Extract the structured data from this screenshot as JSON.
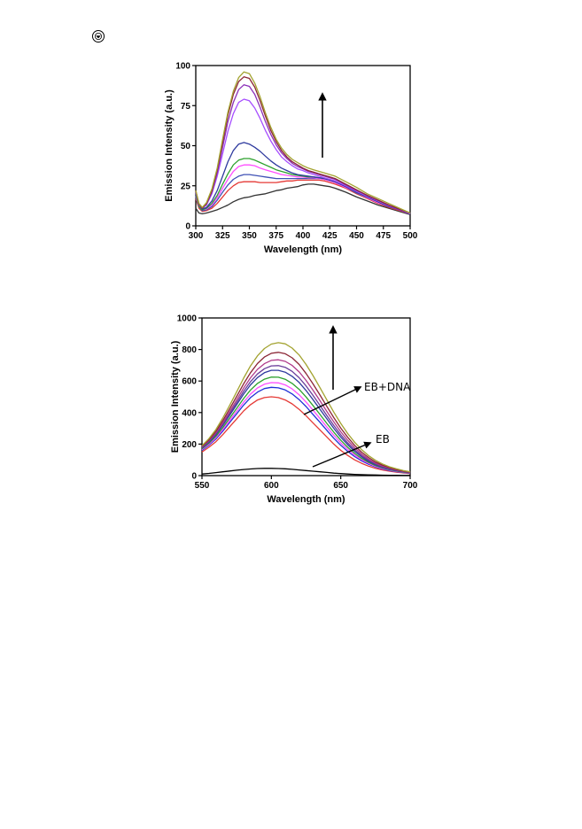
{
  "page": {
    "icon": "circled-cursor-icon"
  },
  "chart_data": [
    {
      "type": "line",
      "title": "",
      "xlabel": "Wavelength (nm)",
      "ylabel": "Emission Intensity (a.u.)",
      "xlim": [
        300,
        500
      ],
      "ylim": [
        0,
        100
      ],
      "xticks": [
        "300",
        "325",
        "350",
        "375",
        "400",
        "425",
        "450",
        "475",
        "500"
      ],
      "yticks": [
        "0",
        "25",
        "50",
        "75",
        "100"
      ],
      "grid": false,
      "legend": "none",
      "annotations": [
        {
          "type": "arrow",
          "direction": "up",
          "text": ""
        }
      ],
      "x": [
        300,
        303,
        306,
        310,
        315,
        320,
        325,
        330,
        335,
        340,
        345,
        350,
        355,
        360,
        365,
        370,
        375,
        380,
        385,
        390,
        395,
        400,
        405,
        410,
        415,
        420,
        425,
        430,
        440,
        450,
        460,
        470,
        480,
        490,
        500
      ],
      "series": [
        {
          "color": "#333333",
          "values": [
            11,
            8,
            7.5,
            8,
            9,
            10,
            11.5,
            13,
            15,
            16.5,
            17.5,
            18,
            19,
            19.5,
            20,
            21,
            22,
            22.5,
            23.5,
            24,
            24.5,
            25.5,
            26,
            26,
            25.5,
            25,
            24.5,
            23.5,
            21,
            18,
            15.5,
            13,
            11,
            9,
            7
          ]
        },
        {
          "color": "#e53935",
          "values": [
            17,
            11,
            9,
            9.5,
            11,
            14,
            18,
            22,
            25,
            27,
            27.5,
            27.5,
            27.5,
            27,
            27,
            27,
            27,
            27.5,
            28,
            28,
            28.5,
            28.5,
            28.5,
            28.5,
            28.5,
            28,
            27,
            26,
            23.5,
            20,
            17,
            14,
            11.5,
            9.5,
            7.5
          ]
        },
        {
          "color": "#3f51b5",
          "values": [
            18,
            12,
            9.5,
            10,
            12,
            16,
            21,
            25.5,
            29,
            31,
            32,
            32,
            31.5,
            31,
            30.5,
            30,
            29.5,
            29.5,
            29.5,
            29.5,
            29.5,
            29.5,
            29.5,
            29.5,
            29.5,
            29,
            28,
            27,
            24,
            20.5,
            17.5,
            14.5,
            12,
            10,
            7.5
          ]
        },
        {
          "color": "#ff4dff",
          "values": [
            18.5,
            12,
            10,
            10.5,
            13,
            17.5,
            23.5,
            29,
            34,
            37,
            38,
            38,
            37.5,
            36,
            35,
            34,
            33,
            32,
            31.5,
            31,
            30.5,
            30.5,
            30,
            30,
            29.5,
            29,
            28,
            27,
            24,
            21,
            17.5,
            14.5,
            12,
            10,
            7.5
          ]
        },
        {
          "color": "#2ca02c",
          "values": [
            19,
            12,
            10,
            11,
            14,
            19,
            26,
            32.5,
            38,
            41,
            42,
            42,
            41,
            39.5,
            38,
            36.5,
            35,
            34,
            33,
            32,
            31.5,
            31,
            30.5,
            30.5,
            30,
            29.5,
            28.5,
            27.5,
            24.5,
            21,
            18,
            15,
            12,
            10,
            7.5
          ]
        },
        {
          "color": "#2e3a9e",
          "values": [
            20,
            13,
            10.5,
            11.5,
            15.5,
            22,
            31,
            40,
            47,
            51,
            52,
            51,
            49,
            46.5,
            43.5,
            40.5,
            38,
            36,
            34.5,
            33,
            32,
            31.5,
            31,
            30.5,
            30,
            29.5,
            28.5,
            27.5,
            24.5,
            21,
            18,
            15,
            12,
            10,
            7.5
          ]
        },
        {
          "color": "#a64dff",
          "values": [
            21,
            13,
            11,
            13,
            20,
            31,
            45,
            59,
            70,
            77,
            79,
            78,
            73.5,
            67,
            59.5,
            53,
            47.5,
            43,
            40,
            37.5,
            35.5,
            34.5,
            33,
            32,
            31,
            30,
            29,
            28,
            25,
            21.5,
            18.5,
            15.5,
            12.5,
            10,
            7.5
          ]
        },
        {
          "color": "#8b2fb8",
          "values": [
            21.5,
            13.5,
            11,
            13.5,
            21,
            33,
            49,
            65,
            77,
            85,
            88,
            87,
            82,
            74,
            65,
            57,
            50.5,
            45.5,
            42,
            39,
            37,
            35.5,
            34,
            33,
            32,
            31,
            30,
            29,
            25.5,
            22,
            19,
            16,
            13,
            10,
            8
          ]
        },
        {
          "color": "#8b2635",
          "values": [
            22,
            13.5,
            11,
            14,
            22,
            35,
            52,
            69,
            82,
            90,
            93,
            92,
            86.5,
            78,
            68.5,
            59.5,
            52.5,
            47,
            43,
            40,
            38,
            36,
            34.5,
            33.5,
            32.5,
            31.5,
            30.5,
            29.5,
            26,
            22.5,
            19,
            16,
            13,
            10.5,
            8
          ]
        },
        {
          "color": "#a3a330",
          "values": [
            22,
            14,
            11.5,
            14.5,
            23,
            36,
            54,
            71,
            84,
            92.5,
            96,
            95,
            89,
            80.5,
            70.5,
            61.5,
            54,
            48.5,
            44.5,
            41.5,
            39.5,
            37.5,
            36,
            35,
            34,
            33,
            32,
            31,
            27.5,
            24,
            20,
            17,
            14,
            11,
            8
          ]
        }
      ]
    },
    {
      "type": "line",
      "title": "",
      "xlabel": "Wavelength (nm)",
      "ylabel": "Emission Intensity (a.u.)",
      "xlim": [
        550,
        700
      ],
      "ylim": [
        0,
        1000
      ],
      "xticks": [
        "550",
        "600",
        "650",
        "700"
      ],
      "yticks": [
        "0",
        "200",
        "400",
        "600",
        "800",
        "1000"
      ],
      "grid": false,
      "legend": "none",
      "annotations": [
        {
          "type": "arrow",
          "direction": "up",
          "text": ""
        },
        {
          "type": "arrow",
          "direction": "pointer",
          "text": "EB+DNA"
        },
        {
          "type": "arrow",
          "direction": "pointer",
          "text": "EB"
        }
      ],
      "series_peaks": {
        "x": [
          550,
          555,
          560,
          565,
          570,
          575,
          580,
          585,
          590,
          595,
          600,
          605,
          610,
          615,
          620,
          625,
          630,
          635,
          640,
          645,
          650,
          655,
          660,
          665,
          670,
          675,
          680,
          685,
          690,
          695,
          700
        ]
      },
      "series": [
        {
          "color": "#000000",
          "peak": 45,
          "values": [
            10,
            14,
            19,
            24,
            29,
            34,
            39,
            42,
            45,
            46,
            46,
            45,
            43,
            40,
            36,
            32,
            28,
            24,
            20,
            16,
            13,
            10,
            8,
            6,
            5,
            4,
            3,
            2,
            2,
            1,
            1
          ]
        },
        {
          "color": "#e53935",
          "peak": 500,
          "values": [
            150,
            180,
            215,
            260,
            310,
            360,
            410,
            450,
            480,
            495,
            500,
            495,
            480,
            455,
            420,
            380,
            335,
            290,
            245,
            200,
            160,
            128,
            100,
            78,
            60,
            46,
            36,
            28,
            22,
            17,
            13
          ]
        },
        {
          "color": "#1f2fd6",
          "peak": 560,
          "values": [
            160,
            192,
            232,
            282,
            337,
            392,
            447,
            495,
            530,
            552,
            560,
            557,
            543,
            518,
            482,
            438,
            388,
            338,
            287,
            237,
            192,
            154,
            121,
            94,
            72,
            55,
            42,
            32,
            25,
            19,
            15
          ]
        },
        {
          "color": "#ff4dff",
          "peak": 590,
          "values": [
            165,
            198,
            240,
            292,
            350,
            408,
            466,
            517,
            556,
            580,
            590,
            588,
            575,
            550,
            513,
            467,
            415,
            362,
            308,
            256,
            208,
            167,
            131,
            101,
            78,
            59,
            45,
            35,
            27,
            21,
            16
          ]
        },
        {
          "color": "#2ca02c",
          "peak": 625,
          "values": [
            170,
            205,
            249,
            304,
            365,
            427,
            489,
            543,
            585,
            612,
            625,
            624,
            611,
            585,
            547,
            499,
            445,
            388,
            331,
            276,
            224,
            180,
            141,
            109,
            84,
            64,
            49,
            37,
            29,
            22,
            17
          ]
        },
        {
          "color": "#2e3a9e",
          "peak": 670,
          "values": [
            175,
            212,
            259,
            318,
            383,
            450,
            517,
            576,
            622,
            653,
            668,
            668,
            656,
            630,
            591,
            540,
            482,
            421,
            360,
            300,
            244,
            196,
            154,
            119,
            91,
            69,
            53,
            40,
            31,
            24,
            18
          ]
        },
        {
          "color": "#6a3d9a",
          "peak": 700,
          "values": [
            178,
            216,
            265,
            326,
            394,
            464,
            534,
            596,
            645,
            678,
            696,
            698,
            687,
            661,
            621,
            569,
            509,
            445,
            381,
            318,
            259,
            208,
            164,
            127,
            97,
            74,
            56,
            43,
            33,
            25,
            19
          ]
        },
        {
          "color": "#b03a8a",
          "peak": 735,
          "values": [
            182,
            221,
            272,
            336,
            407,
            481,
            555,
            621,
            674,
            710,
            731,
            735,
            725,
            699,
            658,
            604,
            542,
            475,
            407,
            341,
            278,
            224,
            177,
            137,
            105,
            80,
            61,
            47,
            36,
            27,
            20
          ]
        },
        {
          "color": "#8b2635",
          "peak": 780,
          "values": [
            186,
            227,
            281,
            349,
            424,
            503,
            582,
            653,
            711,
            752,
            776,
            782,
            773,
            747,
            705,
            648,
            582,
            511,
            439,
            368,
            301,
            243,
            192,
            149,
            115,
            87,
            67,
            51,
            39,
            29,
            22
          ]
        },
        {
          "color": "#a3a330",
          "peak": 840,
          "values": [
            190,
            234,
            292,
            365,
            446,
            532,
            618,
            696,
            760,
            806,
            834,
            843,
            836,
            809,
            765,
            705,
            635,
            558,
            480,
            403,
            331,
            267,
            212,
            165,
            127,
            97,
            74,
            56,
            43,
            32,
            24
          ]
        }
      ]
    }
  ]
}
